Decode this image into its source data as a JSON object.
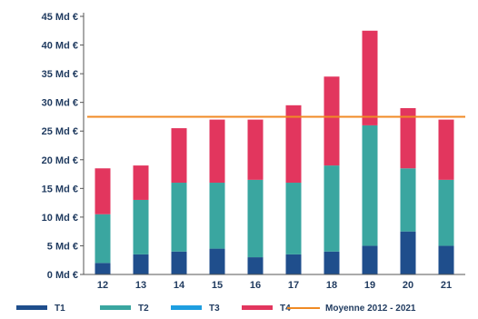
{
  "chart_data": {
    "type": "bar",
    "stacked": true,
    "title": "",
    "xlabel": "",
    "ylabel": "",
    "ylim": [
      0,
      45
    ],
    "y_ticks": [
      0,
      5,
      10,
      15,
      20,
      25,
      30,
      35,
      40,
      45
    ],
    "y_tick_labels": [
      "0 Md €",
      "5 Md €",
      "10 Md €",
      "15 Md €",
      "20 Md €",
      "25 Md €",
      "30 Md €",
      "35 Md €",
      "40 Md €",
      "45 Md €"
    ],
    "categories": [
      "12",
      "13",
      "14",
      "15",
      "16",
      "17",
      "18",
      "19",
      "20",
      "21"
    ],
    "series": [
      {
        "name": "T1",
        "color": "#1f4e8c",
        "values": [
          2.0,
          3.5,
          4.0,
          4.5,
          3.0,
          3.5,
          4.0,
          5.0,
          7.5,
          5.0
        ]
      },
      {
        "name": "T2",
        "color": "#3aa6a0",
        "values": [
          8.5,
          9.5,
          12.0,
          11.5,
          13.5,
          12.5,
          15.0,
          21.0,
          11.0,
          11.5
        ]
      },
      {
        "name": "T3",
        "color": "#1e9ee0",
        "values": [
          0.0,
          0.0,
          0.0,
          0.0,
          0.0,
          0.0,
          0.0,
          0.0,
          0.0,
          0.0
        ]
      },
      {
        "name": "T4",
        "color": "#e2365e",
        "values": [
          8.0,
          6.0,
          9.5,
          11.0,
          10.5,
          13.5,
          15.5,
          16.5,
          10.5,
          10.5
        ]
      }
    ],
    "reference_line": {
      "name": "Moyenne 2012 - 2021",
      "value": 27.5,
      "color": "#f08a24"
    },
    "grid": false,
    "legend_position": "bottom"
  }
}
